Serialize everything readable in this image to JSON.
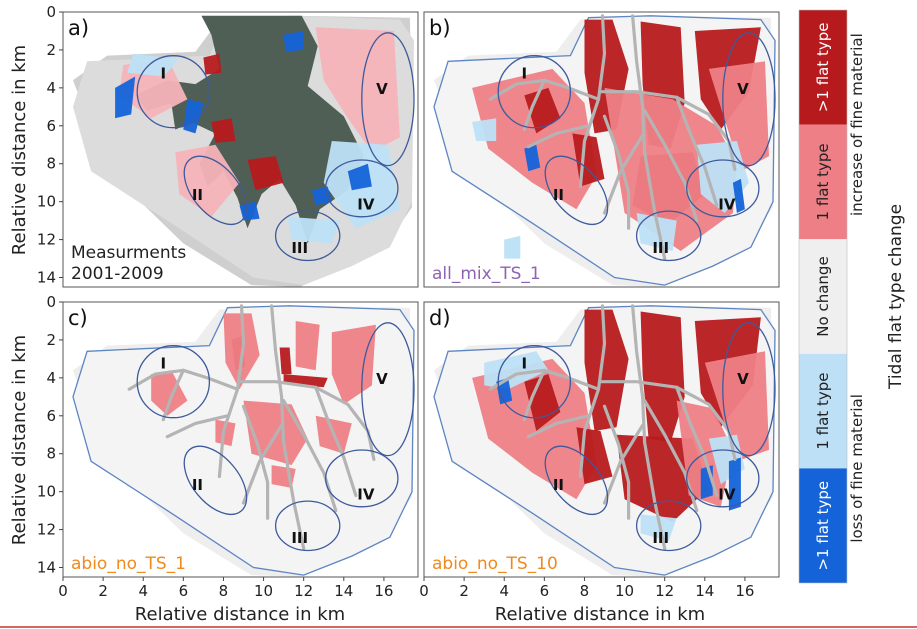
{
  "figure": {
    "axis_label": "Relative distance in km",
    "y_ticks": [
      "0",
      "2",
      "4",
      "6",
      "8",
      "10",
      "12",
      "14"
    ],
    "x_ticks": [
      "0",
      "2",
      "4",
      "6",
      "8",
      "10",
      "12",
      "14",
      "16"
    ],
    "region_labels": [
      "I",
      "II",
      "III",
      "IV",
      "V"
    ]
  },
  "panels": [
    {
      "id": "a",
      "letter": "a)",
      "caption_lines": [
        "Measurments",
        "2001-2009"
      ],
      "caption_color": "#222222"
    },
    {
      "id": "b",
      "letter": "b)",
      "caption_lines": [
        "all_mix_TS_1"
      ],
      "caption_color": "#8e63b3"
    },
    {
      "id": "c",
      "letter": "c)",
      "caption_lines": [
        "abio_no_TS_1"
      ],
      "caption_color": "#ee8a1e"
    },
    {
      "id": "d",
      "letter": "d)",
      "caption_lines": [
        "abio_no_TS_10"
      ],
      "caption_color": "#ee8a1e"
    }
  ],
  "legend": {
    "title": "Tidal flat type change",
    "boxes": [
      {
        "label": ">1 flat type",
        "color": "#b71a1d",
        "text_color": "#ffffff"
      },
      {
        "label": "1 flat type",
        "color": "#ee7f86",
        "text_color": "#222222"
      },
      {
        "label": "No change",
        "color": "#efefef",
        "text_color": "#222222"
      },
      {
        "label": "1 flat type",
        "color": "#bde0f7",
        "text_color": "#222222"
      },
      {
        "label": ">1 flat type",
        "color": "#1463d9",
        "text_color": "#ffffff"
      }
    ],
    "side_top": "increase of fine material",
    "side_bottom": "loss of fine material"
  },
  "colors": {
    "strong_increase": "#b71a1d",
    "increase": "#ee7f86",
    "no_change": "#efefef",
    "loss": "#bde0f7",
    "strong_loss": "#1463d9",
    "channel": "#b4b4b4",
    "outline": "#5d85c2",
    "ellipse": "#3d5a9c",
    "aerial": "#4f5f55"
  }
}
